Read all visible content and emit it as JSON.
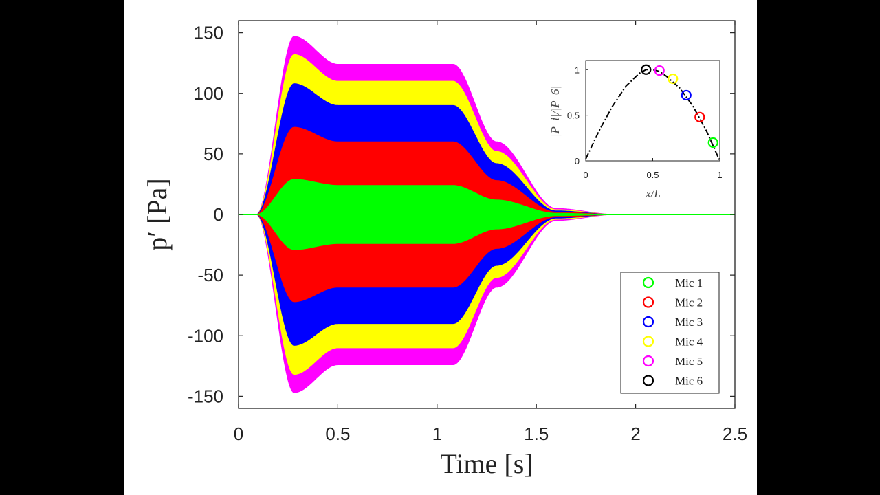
{
  "chart_data": [
    {
      "type": "area",
      "xlabel": "Time [s]",
      "ylabel": "p′ [Pa]",
      "xlim": [
        0,
        2.5
      ],
      "ylim": [
        -160,
        160
      ],
      "xticks": [
        0,
        0.5,
        1,
        1.5,
        2,
        2.5
      ],
      "xtick_labels": [
        "0",
        "0.5",
        "1",
        "1.5",
        "2",
        "2.5"
      ],
      "yticks": [
        -150,
        -100,
        -50,
        0,
        50,
        100,
        150
      ],
      "ytick_labels": [
        "-150",
        "-100",
        "-50",
        "0",
        "50",
        "100",
        "150"
      ],
      "grid": false,
      "legend_position": "bottom-right",
      "series": [
        {
          "name": "Mic 5",
          "color": "#ff00ff",
          "amplitude_envelope": {
            "t": [
              0.09,
              0.28,
              0.5,
              1.08,
              1.3,
              1.6,
              1.9
            ],
            "a": [
              0,
              147,
              124,
              124,
              60,
              5,
              0
            ]
          }
        },
        {
          "name": "Mic 4",
          "color": "#ffff00",
          "amplitude_envelope": {
            "t": [
              0.09,
              0.28,
              0.5,
              1.08,
              1.3,
              1.6,
              1.9
            ],
            "a": [
              0,
              132,
              110,
              110,
              52,
              4,
              0
            ]
          }
        },
        {
          "name": "Mic 3",
          "color": "#0000ff",
          "amplitude_envelope": {
            "t": [
              0.09,
              0.28,
              0.5,
              1.08,
              1.3,
              1.6,
              1.9
            ],
            "a": [
              0,
              108,
              90,
              90,
              42,
              3,
              0
            ]
          }
        },
        {
          "name": "Mic 2",
          "color": "#ff0000",
          "amplitude_envelope": {
            "t": [
              0.09,
              0.28,
              0.5,
              1.08,
              1.3,
              1.6,
              1.9
            ],
            "a": [
              0,
              72,
              60,
              60,
              28,
              2,
              0
            ]
          }
        },
        {
          "name": "Mic 1",
          "color": "#00ff00",
          "amplitude_envelope": {
            "t": [
              0.09,
              0.28,
              0.5,
              1.08,
              1.3,
              1.6,
              1.9
            ],
            "a": [
              0,
              29,
              24,
              24,
              12,
              1,
              0
            ]
          }
        }
      ],
      "legend": [
        {
          "name": "Mic 1",
          "color": "#00ff00"
        },
        {
          "name": "Mic 2",
          "color": "#ff0000"
        },
        {
          "name": "Mic 3",
          "color": "#0000ff"
        },
        {
          "name": "Mic 4",
          "color": "#ffff00"
        },
        {
          "name": "Mic 5",
          "color": "#ff00ff"
        },
        {
          "name": "Mic 6",
          "color": "#000000"
        }
      ]
    },
    {
      "type": "scatter",
      "xlabel": "x/L",
      "ylabel": "|P_i|/|P_6|",
      "xlim": [
        0,
        1
      ],
      "ylim": [
        0,
        1.1
      ],
      "xticks": [
        0,
        0.5,
        1
      ],
      "xtick_labels": [
        "0",
        "0.5",
        "1"
      ],
      "yticks": [
        0,
        0.5,
        1
      ],
      "ytick_labels": [
        "0",
        "0.5",
        "1"
      ],
      "curve": {
        "style": "dash-dot",
        "color": "#000000",
        "x": [
          0,
          0.1,
          0.2,
          0.3,
          0.4,
          0.45,
          0.5,
          0.55,
          0.6,
          0.7,
          0.8,
          0.9,
          1.0
        ],
        "y": [
          0.02,
          0.33,
          0.6,
          0.82,
          0.96,
          1.0,
          1.0,
          0.98,
          0.93,
          0.8,
          0.6,
          0.33,
          0.0
        ]
      },
      "points": [
        {
          "name": "Mic 6",
          "x": 0.45,
          "y": 1.0,
          "color": "#000000"
        },
        {
          "name": "Mic 5",
          "x": 0.55,
          "y": 0.99,
          "color": "#ff00ff"
        },
        {
          "name": "Mic 4",
          "x": 0.65,
          "y": 0.9,
          "color": "#ffff00"
        },
        {
          "name": "Mic 3",
          "x": 0.75,
          "y": 0.72,
          "color": "#0000ff"
        },
        {
          "name": "Mic 2",
          "x": 0.85,
          "y": 0.48,
          "color": "#ff0000"
        },
        {
          "name": "Mic 1",
          "x": 0.95,
          "y": 0.2,
          "color": "#00ff00"
        }
      ]
    }
  ]
}
